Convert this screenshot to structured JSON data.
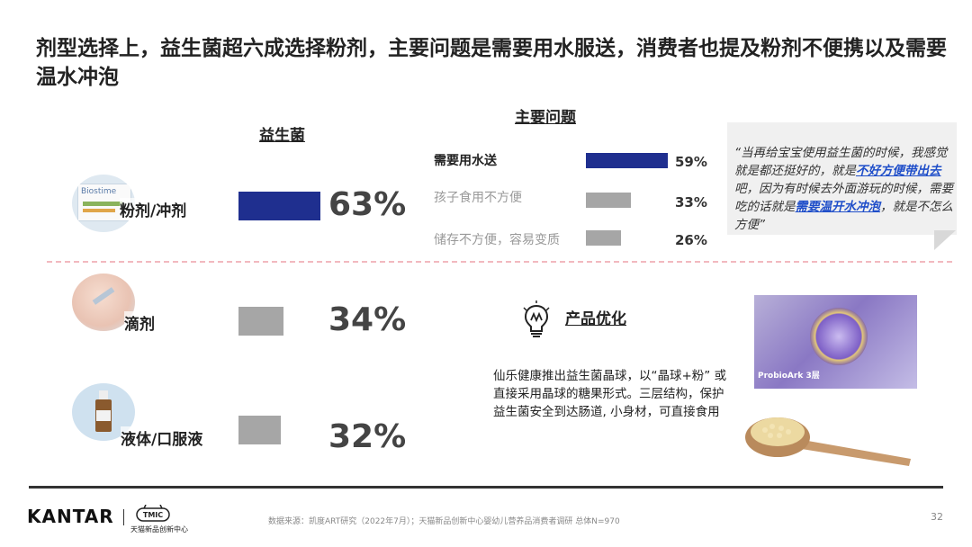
{
  "title": "剂型选择上，益生菌超六成选择粉剂，主要问题是需要用水服送，消费者也提及粉剂不便携以及需要温水冲泡",
  "left_section": {
    "heading": "益生菌",
    "rows": [
      {
        "label": "粉剂/冲剂",
        "value_text": "63%",
        "value": 63,
        "accent": true
      },
      {
        "label": "滴剂",
        "value_text": "34%",
        "value": 34,
        "accent": false
      },
      {
        "label": "液体/口服液",
        "value_text": "32%",
        "value": 32,
        "accent": false
      }
    ],
    "thumbnail_text": "Biostime"
  },
  "issues": {
    "heading": "主要问题",
    "items": [
      {
        "label": "需要用水送",
        "value_text": "59%",
        "value": 59
      },
      {
        "label": "孩子食用不方便",
        "value_text": "33%",
        "value": 33
      },
      {
        "label": "储存不方便，容易变质",
        "value_text": "26%",
        "value": 26
      }
    ]
  },
  "quote": {
    "part1": "“当再给宝宝使用益生菌的时候，我感觉就是都还挺好的，就是",
    "hl1": "不好方便带出去",
    "part2": "吧，因为有时候去外面游玩的时候，需要吃的话就是",
    "hl2": "需要温开水冲泡",
    "part3": "，就是不怎么方便”"
  },
  "optimization": {
    "heading": "产品优化",
    "body": "仙乐健康推出益生菌晶球，以“晶球+粉” 或直接采用晶球的糖果形式。三层结构，保护益生菌安全到达肠道, 小身材，可直接食用",
    "product_caption": "ProbioArk 3层"
  },
  "footer": {
    "kantar": "KANTAR",
    "tmic_logo": "TMIC",
    "tmic_name": "天猫新品创新中心",
    "source": "数据来源：凯度ART研究（2022年7月）；天猫新品创新中心婴幼儿营养品消费者调研 总体N=970",
    "page": "32"
  },
  "colors": {
    "accent": "#1f2f8f",
    "neutral_bar": "#a6a6a6",
    "highlight": "#1f4ec9",
    "divider": "#f2b9bf"
  }
}
